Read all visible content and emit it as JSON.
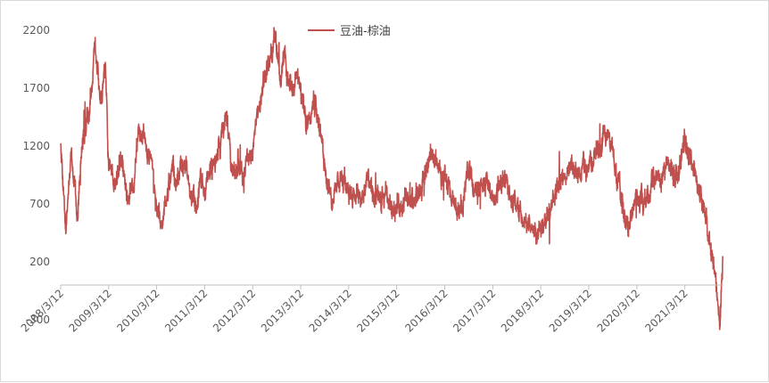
{
  "chart_data": {
    "type": "line",
    "legend": {
      "placement": "top-center"
    },
    "series": [
      {
        "name": "豆油-棕油",
        "color": "#c0504d",
        "anchors": [
          [
            "2008/3/12",
            1250
          ],
          [
            "2008/4/20",
            450
          ],
          [
            "2008/6/1",
            1150
          ],
          [
            "2008/7/15",
            600
          ],
          [
            "2008/9/1",
            1300
          ],
          [
            "2008/10/15",
            1450
          ],
          [
            "2008/11/25",
            2100
          ],
          [
            "2009/1/10",
            1550
          ],
          [
            "2009/2/15",
            1900
          ],
          [
            "2009/3/12",
            1000
          ],
          [
            "2009/5/1",
            900
          ],
          [
            "2009/6/15",
            1100
          ],
          [
            "2009/8/10",
            700
          ],
          [
            "2009/9/20",
            900
          ],
          [
            "2009/10/25",
            1300
          ],
          [
            "2009/12/10",
            1250
          ],
          [
            "2010/1/15",
            1100
          ],
          [
            "2010/3/12",
            650
          ],
          [
            "2010/4/20",
            500
          ],
          [
            "2010/6/1",
            800
          ],
          [
            "2010/7/15",
            1050
          ],
          [
            "2010/9/1",
            900
          ],
          [
            "2010/10/10",
            1100
          ],
          [
            "2010/11/25",
            800
          ],
          [
            "2011/1/5",
            650
          ],
          [
            "2011/2/15",
            900
          ],
          [
            "2011/3/12",
            800
          ],
          [
            "2011/4/25",
            1000
          ],
          [
            "2011/6/10",
            1100
          ],
          [
            "2011/7/20",
            1300
          ],
          [
            "2011/9/1",
            1450
          ],
          [
            "2011/10/10",
            900
          ],
          [
            "2011/11/20",
            1050
          ],
          [
            "2012/1/5",
            1000
          ],
          [
            "2012/2/15",
            1100
          ],
          [
            "2012/3/12",
            1200
          ],
          [
            "2012/4/20",
            1450
          ],
          [
            "2012/6/1",
            1700
          ],
          [
            "2012/7/15",
            1950
          ],
          [
            "2012/8/25",
            2150
          ],
          [
            "2012/10/1",
            1800
          ],
          [
            "2012/11/10",
            1950
          ],
          [
            "2012/12/20",
            1700
          ],
          [
            "2013/2/1",
            1800
          ],
          [
            "2013/3/12",
            1650
          ],
          [
            "2013/4/20",
            1400
          ],
          [
            "2013/5/25",
            1550
          ],
          [
            "2013/7/1",
            1650
          ],
          [
            "2013/8/10",
            1250
          ],
          [
            "2013/9/20",
            1000
          ],
          [
            "2013/11/1",
            750
          ],
          [
            "2013/12/15",
            850
          ],
          [
            "2014/1/20",
            900
          ],
          [
            "2014/3/12",
            850
          ],
          [
            "2014/5/1",
            800
          ],
          [
            "2014/6/15",
            750
          ],
          [
            "2014/8/1",
            900
          ],
          [
            "2014/9/15",
            750
          ],
          [
            "2014/11/1",
            700
          ],
          [
            "2014/12/15",
            750
          ],
          [
            "2015/2/1",
            700
          ],
          [
            "2015/3/12",
            650
          ],
          [
            "2015/5/1",
            750
          ],
          [
            "2015/6/15",
            700
          ],
          [
            "2015/8/1",
            750
          ],
          [
            "2015/9/15",
            800
          ],
          [
            "2015/11/1",
            1050
          ],
          [
            "2015/12/15",
            1150
          ],
          [
            "2016/2/1",
            1000
          ],
          [
            "2016/3/12",
            900
          ],
          [
            "2016/5/1",
            750
          ],
          [
            "2016/6/15",
            650
          ],
          [
            "2016/8/1",
            700
          ],
          [
            "2016/9/15",
            1050
          ],
          [
            "2016/10/20",
            800
          ],
          [
            "2016/12/10",
            850
          ],
          [
            "2017/2/1",
            900
          ],
          [
            "2017/3/12",
            700
          ],
          [
            "2017/5/1",
            850
          ],
          [
            "2017/6/20",
            900
          ],
          [
            "2017/8/10",
            750
          ],
          [
            "2017/10/1",
            650
          ],
          [
            "2017/11/15",
            550
          ],
          [
            "2018/1/5",
            500
          ],
          [
            "2018/2/15",
            450
          ],
          [
            "2018/3/12",
            500
          ],
          [
            "2018/4/25",
            650
          ],
          [
            "2018/6/10",
            750
          ],
          [
            "2018/7/25",
            850
          ],
          [
            "2018/9/10",
            950
          ],
          [
            "2018/11/1",
            1000
          ],
          [
            "2018/12/15",
            950
          ],
          [
            "2019/2/1",
            1000
          ],
          [
            "2019/3/12",
            1050
          ],
          [
            "2019/5/1",
            1100
          ],
          [
            "2019/6/15",
            1200
          ],
          [
            "2019/8/1",
            1300
          ],
          [
            "2019/9/1",
            1200
          ],
          [
            "2019/10/15",
            900
          ],
          [
            "2019/11/25",
            700
          ],
          [
            "2020/1/5",
            500
          ],
          [
            "2020/2/15",
            700
          ],
          [
            "2020/3/12",
            800
          ],
          [
            "2020/5/1",
            700
          ],
          [
            "2020/6/15",
            800
          ],
          [
            "2020/8/1",
            950
          ],
          [
            "2020/9/15",
            1000
          ],
          [
            "2020/11/1",
            1050
          ],
          [
            "2020/12/15",
            950
          ],
          [
            "2021/2/1",
            1000
          ],
          [
            "2021/3/12",
            1250
          ],
          [
            "2021/4/25",
            1100
          ],
          [
            "2021/6/10",
            900
          ],
          [
            "2021/7/25",
            700
          ],
          [
            "2021/9/1",
            450
          ],
          [
            "2021/10/15",
            200
          ],
          [
            "2021/11/10",
            -100
          ],
          [
            "2021/12/5",
            -350
          ],
          [
            "2021/12/25",
            250
          ]
        ]
      }
    ],
    "y_axis": {
      "min": -300,
      "max": 2300,
      "ticks": [
        -300,
        200,
        700,
        1200,
        1700,
        2200
      ],
      "grid": false
    },
    "x_axis": {
      "type": "date",
      "min": "2008/3/12",
      "max": "2021/12/31",
      "ticks": [
        "2008/3/12",
        "2009/3/12",
        "2010/3/12",
        "2011/3/12",
        "2012/3/12",
        "2013/3/12",
        "2014/3/12",
        "2015/3/12",
        "2016/3/12",
        "2017/3/12",
        "2018/3/12",
        "2019/3/12",
        "2020/3/12",
        "2021/3/12"
      ],
      "tick_rotation_deg": -45,
      "crosses_at": 0
    }
  }
}
